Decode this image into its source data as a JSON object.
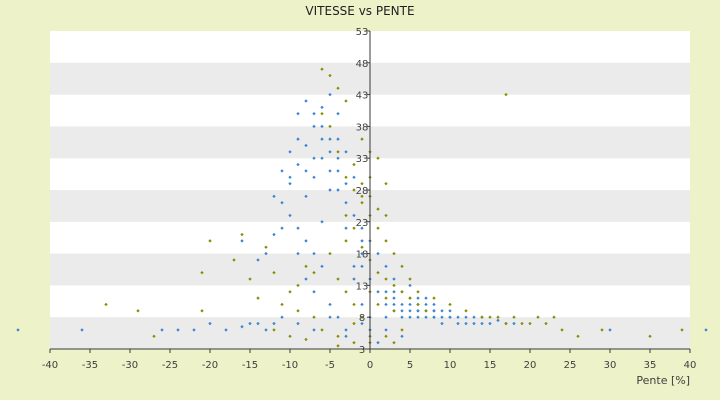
{
  "chart_data": {
    "type": "scatter",
    "title": "VITESSE vs PENTE",
    "xlabel": "Pente [%]",
    "ylabel": "",
    "xlim": [
      -40,
      40
    ],
    "ylim": [
      3,
      53
    ],
    "x_ticks": [
      -40,
      -35,
      -30,
      -25,
      -20,
      -15,
      -10,
      -5,
      0,
      5,
      10,
      15,
      20,
      25,
      30,
      35,
      40
    ],
    "y_ticks": [
      3,
      8,
      13,
      18,
      23,
      28,
      33,
      38,
      43,
      48,
      53
    ],
    "grid": "horizontal bands",
    "legend": "none",
    "series": [
      {
        "color": "#3a86d0",
        "points": [
          [
            -44,
            6
          ],
          [
            -36,
            6
          ],
          [
            -26,
            6
          ],
          [
            -24,
            6
          ],
          [
            -22,
            6
          ],
          [
            -20,
            7
          ],
          [
            -18,
            6
          ],
          [
            -16,
            6.5
          ],
          [
            -14,
            7
          ],
          [
            -12,
            7
          ],
          [
            -16,
            20
          ],
          [
            -14,
            17
          ],
          [
            -13,
            18
          ],
          [
            -12,
            21
          ],
          [
            -11,
            26
          ],
          [
            -10,
            29
          ],
          [
            -9,
            32
          ],
          [
            -8,
            35
          ],
          [
            -7,
            38
          ],
          [
            -6,
            41
          ],
          [
            -5,
            43
          ],
          [
            -4,
            40
          ],
          [
            -3,
            34
          ],
          [
            -2,
            30
          ],
          [
            -10,
            24
          ],
          [
            -9,
            22
          ],
          [
            -8,
            27
          ],
          [
            -7,
            30
          ],
          [
            -6,
            33
          ],
          [
            -5,
            36
          ],
          [
            -4,
            33
          ],
          [
            -3,
            29
          ],
          [
            -8,
            20
          ],
          [
            -7,
            18
          ],
          [
            -6,
            23
          ],
          [
            -5,
            28
          ],
          [
            -4,
            31
          ],
          [
            -3,
            26
          ],
          [
            -2,
            24
          ],
          [
            -1,
            20
          ],
          [
            -11,
            31
          ],
          [
            -10,
            34
          ],
          [
            -9,
            36
          ],
          [
            -8,
            31
          ],
          [
            -7,
            33
          ],
          [
            -6,
            36
          ],
          [
            -5,
            31
          ],
          [
            -4,
            28
          ],
          [
            -3,
            22
          ],
          [
            -1,
            18
          ],
          [
            -9,
            40
          ],
          [
            -8,
            42
          ],
          [
            -7,
            40
          ],
          [
            -6,
            38
          ],
          [
            -5,
            34
          ],
          [
            -4,
            36
          ],
          [
            -12,
            27
          ],
          [
            -10,
            30
          ],
          [
            -11,
            22
          ],
          [
            -9,
            18
          ],
          [
            -8,
            14
          ],
          [
            -7,
            12
          ],
          [
            -6,
            16
          ],
          [
            -5,
            10
          ],
          [
            -4,
            8
          ],
          [
            -3,
            6
          ],
          [
            -2,
            14
          ],
          [
            -1,
            10
          ],
          [
            0,
            6
          ],
          [
            0,
            8
          ],
          [
            1,
            4
          ],
          [
            1,
            12
          ],
          [
            2,
            16
          ],
          [
            3,
            10
          ],
          [
            4,
            12
          ],
          [
            5,
            13
          ],
          [
            6,
            9
          ],
          [
            7,
            11
          ],
          [
            8,
            8
          ],
          [
            9,
            9
          ],
          [
            2,
            8
          ],
          [
            3,
            9
          ],
          [
            4,
            10
          ],
          [
            4,
            8
          ],
          [
            5,
            9
          ],
          [
            5,
            11
          ],
          [
            6,
            10
          ],
          [
            6,
            8
          ],
          [
            7,
            9
          ],
          [
            7,
            8
          ],
          [
            8,
            9
          ],
          [
            8,
            10
          ],
          [
            9,
            8
          ],
          [
            9,
            7
          ],
          [
            10,
            8
          ],
          [
            10,
            9
          ],
          [
            11,
            8
          ],
          [
            11,
            7
          ],
          [
            12,
            8
          ],
          [
            12,
            7
          ],
          [
            13,
            8
          ],
          [
            13,
            7
          ],
          [
            14,
            7
          ],
          [
            14,
            8
          ],
          [
            15,
            7
          ],
          [
            16,
            7.5
          ],
          [
            17,
            7
          ],
          [
            18,
            7
          ],
          [
            3,
            11
          ],
          [
            4,
            9
          ],
          [
            5,
            8
          ],
          [
            6,
            9
          ],
          [
            7,
            10
          ],
          [
            8,
            8
          ],
          [
            2,
            10
          ],
          [
            3,
            12
          ],
          [
            5,
            10
          ],
          [
            6,
            11
          ],
          [
            8,
            9
          ],
          [
            10,
            8
          ],
          [
            -2,
            16
          ],
          [
            -1,
            22
          ],
          [
            0,
            14
          ],
          [
            1,
            18
          ],
          [
            2,
            12
          ],
          [
            3,
            14
          ],
          [
            0,
            20
          ],
          [
            -1,
            16
          ],
          [
            2,
            6
          ],
          [
            4,
            5
          ],
          [
            -15,
            7
          ],
          [
            -13,
            6
          ],
          [
            -11,
            8
          ],
          [
            -9,
            7
          ],
          [
            -7,
            6
          ],
          [
            -5,
            8
          ],
          [
            -3,
            5
          ],
          [
            -1,
            7
          ],
          [
            30,
            6
          ],
          [
            42,
            6
          ]
        ]
      },
      {
        "color": "#8c8c00",
        "points": [
          [
            -33,
            10
          ],
          [
            -29,
            9
          ],
          [
            -27,
            5
          ],
          [
            -21,
            15
          ],
          [
            -21,
            9
          ],
          [
            -20,
            20
          ],
          [
            -17,
            17
          ],
          [
            -15,
            14
          ],
          [
            -14,
            11
          ],
          [
            -13,
            19
          ],
          [
            -16,
            21
          ],
          [
            -12,
            15
          ],
          [
            -10,
            12
          ],
          [
            -9,
            9
          ],
          [
            -8,
            16
          ],
          [
            -7,
            8
          ],
          [
            -6,
            47
          ],
          [
            -5,
            46
          ],
          [
            -4,
            44
          ],
          [
            -3,
            42
          ],
          [
            -6,
            40
          ],
          [
            -5,
            38
          ],
          [
            -4,
            34
          ],
          [
            -3,
            30
          ],
          [
            -2,
            28
          ],
          [
            -1,
            26
          ],
          [
            0,
            24
          ],
          [
            1,
            22
          ],
          [
            2,
            20
          ],
          [
            3,
            18
          ],
          [
            -2,
            32
          ],
          [
            -1,
            29
          ],
          [
            0,
            27
          ],
          [
            1,
            25
          ],
          [
            2,
            24
          ],
          [
            -3,
            24
          ],
          [
            -2,
            22
          ],
          [
            -1,
            19
          ],
          [
            0,
            17
          ],
          [
            1,
            15
          ],
          [
            2,
            14
          ],
          [
            3,
            13
          ],
          [
            4,
            12
          ],
          [
            5,
            11
          ],
          [
            6,
            10
          ],
          [
            7,
            9
          ],
          [
            0,
            12
          ],
          [
            1,
            10
          ],
          [
            2,
            11
          ],
          [
            3,
            9
          ],
          [
            -4,
            14
          ],
          [
            -3,
            12
          ],
          [
            -2,
            10
          ],
          [
            -1,
            8
          ],
          [
            -6,
            6
          ],
          [
            -4,
            5
          ],
          [
            -2,
            7
          ],
          [
            0,
            5
          ],
          [
            2,
            5
          ],
          [
            4,
            6
          ],
          [
            17,
            43
          ],
          [
            1,
            33
          ],
          [
            2,
            29
          ],
          [
            0,
            30
          ],
          [
            -1,
            27
          ],
          [
            -3,
            20
          ],
          [
            -5,
            18
          ],
          [
            -7,
            15
          ],
          [
            -9,
            13
          ],
          [
            -11,
            10
          ],
          [
            18,
            8
          ],
          [
            20,
            7
          ],
          [
            21,
            8
          ],
          [
            22,
            7
          ],
          [
            23,
            8
          ],
          [
            19,
            7
          ],
          [
            24,
            6
          ],
          [
            26,
            5
          ],
          [
            29,
            6
          ],
          [
            35,
            5
          ],
          [
            14,
            8
          ],
          [
            15,
            8
          ],
          [
            16,
            8
          ],
          [
            17,
            7
          ],
          [
            12,
            9
          ],
          [
            10,
            10
          ],
          [
            8,
            11
          ],
          [
            6,
            12
          ],
          [
            5,
            14
          ],
          [
            4,
            16
          ],
          [
            -4,
            3.5
          ],
          [
            -2,
            4
          ],
          [
            0,
            4
          ],
          [
            3,
            4
          ],
          [
            -8,
            4.5
          ],
          [
            -10,
            5
          ],
          [
            -12,
            6
          ],
          [
            39,
            6
          ],
          [
            -1,
            36
          ],
          [
            0,
            34
          ]
        ]
      }
    ]
  }
}
